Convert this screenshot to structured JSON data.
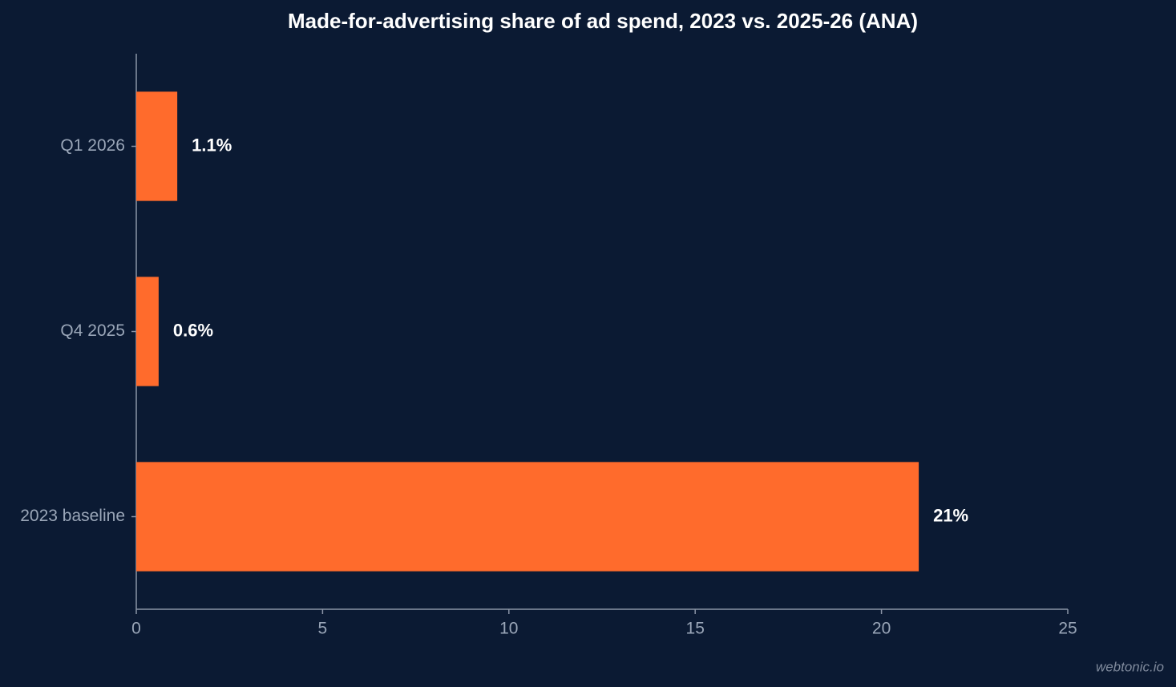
{
  "chart_data": {
    "type": "barh",
    "title": "Made-for-advertising share of ad spend, 2023 vs. 2025-26 (ANA)",
    "categories": [
      "2023 baseline",
      "Q4 2025",
      "Q1 2026"
    ],
    "values": [
      21,
      0.6,
      1.1
    ],
    "value_labels": [
      "21%",
      "0.6%",
      "1.1%"
    ],
    "color": "#ff6b2c",
    "xlim": [
      0,
      25
    ],
    "xticks": [
      0,
      5,
      10,
      15,
      20,
      25
    ],
    "grid": false
  },
  "watermark": "webtonic.io"
}
